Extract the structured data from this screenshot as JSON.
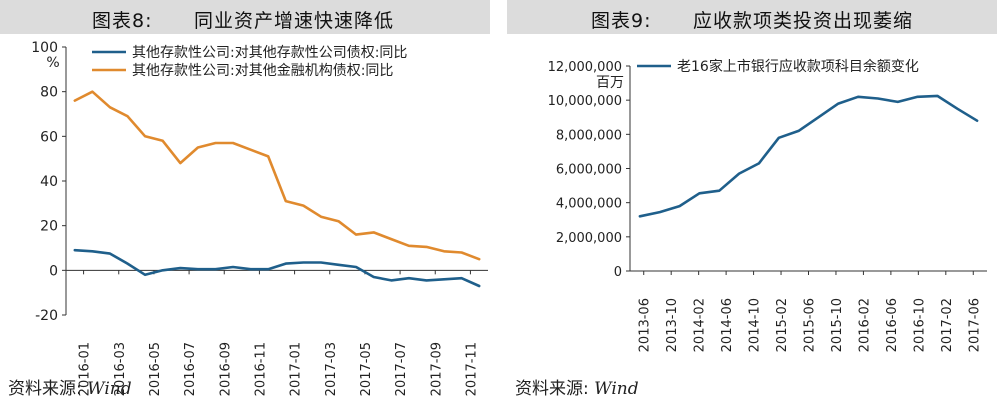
{
  "chart_data": [
    {
      "type": "line",
      "figure_label": "图表8:",
      "title": "同业资产增速快速降低",
      "ylabel": "%",
      "ylim": [
        -20,
        100
      ],
      "yticks": [
        -20,
        0,
        20,
        40,
        60,
        80,
        100
      ],
      "x_tick_labels": [
        "2016-01",
        "2016-03",
        "2016-05",
        "2016-07",
        "2016-09",
        "2016-11",
        "2017-01",
        "2017-03",
        "2017-05",
        "2017-07",
        "2017-09",
        "2017-11"
      ],
      "legend_position": "top-left",
      "series": [
        {
          "name": "其他存款性公司:对其他存款性公司债权:同比",
          "color": "#1f5f8b",
          "values": [
            9,
            8.5,
            7.5,
            3,
            -2,
            0,
            1,
            0.5,
            0.5,
            1.5,
            0.5,
            0.5,
            3,
            3.5,
            3.5,
            2.5,
            1.5,
            -3,
            -4.5,
            -3.5,
            -4.5,
            -4,
            -3.5,
            -7
          ]
        },
        {
          "name": "其他存款性公司:对其他金融机构债权:同比",
          "color": "#e08a2e",
          "values": [
            76,
            80,
            73,
            69,
            60,
            58,
            48,
            55,
            57,
            57,
            54,
            51,
            31,
            29,
            24,
            22,
            16,
            17,
            14,
            11,
            10.5,
            8.5,
            8,
            5
          ]
        }
      ],
      "source": "资料来源: ",
      "source_name": "Wind"
    },
    {
      "type": "line",
      "figure_label": "图表9:",
      "title": "应收款项类投资出现萎缩",
      "ylabel": "百万",
      "ylim": [
        0,
        12000000
      ],
      "yticks": [
        0,
        2000000,
        4000000,
        6000000,
        8000000,
        10000000,
        12000000
      ],
      "ytick_labels": [
        "0",
        "2,000,000",
        "4,000,000",
        "6,000,000",
        "8,000,000",
        "10,000,000",
        "12,000,000"
      ],
      "x_tick_labels": [
        "2013-06",
        "2013-10",
        "2014-02",
        "2014-06",
        "2014-10",
        "2015-02",
        "2015-06",
        "2015-10",
        "2016-02",
        "2016-06",
        "2016-10",
        "2017-02",
        "2017-06"
      ],
      "legend_position": "top-left",
      "series": [
        {
          "name": "老16家上市银行应收款项科目余额变化",
          "color": "#1f5f8b",
          "values": [
            3200000,
            3450000,
            3800000,
            4550000,
            4700000,
            5700000,
            6300000,
            7800000,
            8200000,
            9000000,
            9800000,
            10200000,
            10100000,
            9900000,
            10200000,
            10250000,
            9500000,
            8800000
          ]
        }
      ],
      "source": "资料来源: ",
      "source_name": "Wind"
    }
  ]
}
